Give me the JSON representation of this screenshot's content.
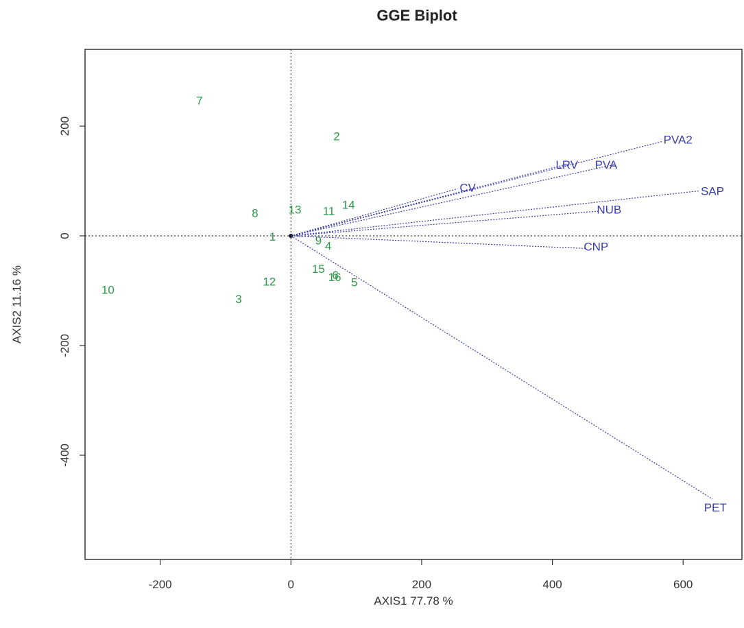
{
  "chart_data": {
    "type": "scatter",
    "title": "GGE Biplot",
    "xlabel": "AXIS1 77.78 %",
    "ylabel": "AXIS2 11.16 %",
    "xlim": [
      -315,
      690
    ],
    "ylim": [
      -590,
      340
    ],
    "xticks": [
      -200,
      0,
      200,
      400,
      600
    ],
    "yticks": [
      -400,
      -200,
      0,
      200
    ],
    "grid": false,
    "reference_lines": {
      "x": 0,
      "y": 0
    },
    "colors": {
      "genotypes": "#2e9a4a",
      "environments": "#3a3fa8",
      "frame": "#333333"
    },
    "genotypes": [
      {
        "label": "1",
        "x": -28,
        "y": -3
      },
      {
        "label": "2",
        "x": 70,
        "y": 180
      },
      {
        "label": "3",
        "x": -80,
        "y": -117
      },
      {
        "label": "4",
        "x": 57,
        "y": -20
      },
      {
        "label": "5",
        "x": 97,
        "y": -86
      },
      {
        "label": "7",
        "x": -140,
        "y": 245
      },
      {
        "label": "8",
        "x": -55,
        "y": 40
      },
      {
        "label": "9",
        "x": 42,
        "y": -10
      },
      {
        "label": "10",
        "x": -280,
        "y": -100
      },
      {
        "label": "11",
        "x": 58,
        "y": 44
      },
      {
        "label": "12",
        "x": -33,
        "y": -85
      },
      {
        "label": "13",
        "x": 6,
        "y": 46
      },
      {
        "label": "14",
        "x": 88,
        "y": 55
      },
      {
        "label": "15",
        "x": 42,
        "y": -62
      },
      {
        "label": "16",
        "x": 67,
        "y": -77
      },
      {
        "label": "6",
        "x": 68,
        "y": -73
      }
    ],
    "environments": [
      {
        "label": "PVA2",
        "x": 568,
        "y": 172,
        "tx": 570,
        "ty": 174
      },
      {
        "label": "PVA",
        "x": 495,
        "y": 130,
        "tx": 465,
        "ty": 128
      },
      {
        "label": "LRV",
        "x": 420,
        "y": 130,
        "tx": 405,
        "ty": 128
      },
      {
        "label": "CV",
        "x": 255,
        "y": 86,
        "tx": 258,
        "ty": 86
      },
      {
        "label": "SAP",
        "x": 625,
        "y": 82,
        "tx": 627,
        "ty": 80
      },
      {
        "label": "NUB",
        "x": 470,
        "y": 45,
        "tx": 468,
        "ty": 46
      },
      {
        "label": "CNP",
        "x": 450,
        "y": -23,
        "tx": 448,
        "ty": -21
      },
      {
        "label": "PET",
        "x": 645,
        "y": -480,
        "tx": 632,
        "ty": -497
      }
    ]
  }
}
